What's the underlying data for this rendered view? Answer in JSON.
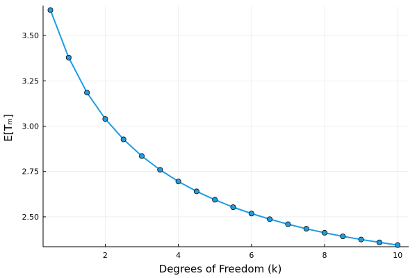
{
  "chart_data": {
    "type": "line",
    "title": "",
    "xlabel": "Degrees of Freedom (k)",
    "ylabel": "E[Tₘ]",
    "xlim": [
      0.3,
      10.3
    ],
    "ylim": [
      2.335,
      3.665
    ],
    "x_ticks": [
      2,
      4,
      6,
      8,
      10
    ],
    "x_tick_labels": [
      "2",
      "4",
      "6",
      "8",
      "10"
    ],
    "y_ticks": [
      2.5,
      2.75,
      3.0,
      3.25,
      3.5
    ],
    "y_tick_labels": [
      "2.50",
      "2.75",
      "3.00",
      "3.25",
      "3.50"
    ],
    "grid": true,
    "legend": "none",
    "series": [
      {
        "color": "#1f9ce4",
        "marker": "circle",
        "x": [
          0.5,
          1.0,
          1.5,
          2.0,
          2.5,
          3.0,
          3.5,
          4.0,
          4.5,
          5.0,
          5.5,
          6.0,
          6.5,
          7.0,
          7.5,
          8.0,
          8.5,
          9.0,
          9.5,
          10.0
        ],
        "y": [
          3.64,
          3.378,
          3.185,
          3.04,
          2.927,
          2.835,
          2.759,
          2.695,
          2.64,
          2.594,
          2.553,
          2.518,
          2.487,
          2.459,
          2.434,
          2.412,
          2.392,
          2.375,
          2.359,
          2.344
        ]
      }
    ]
  }
}
